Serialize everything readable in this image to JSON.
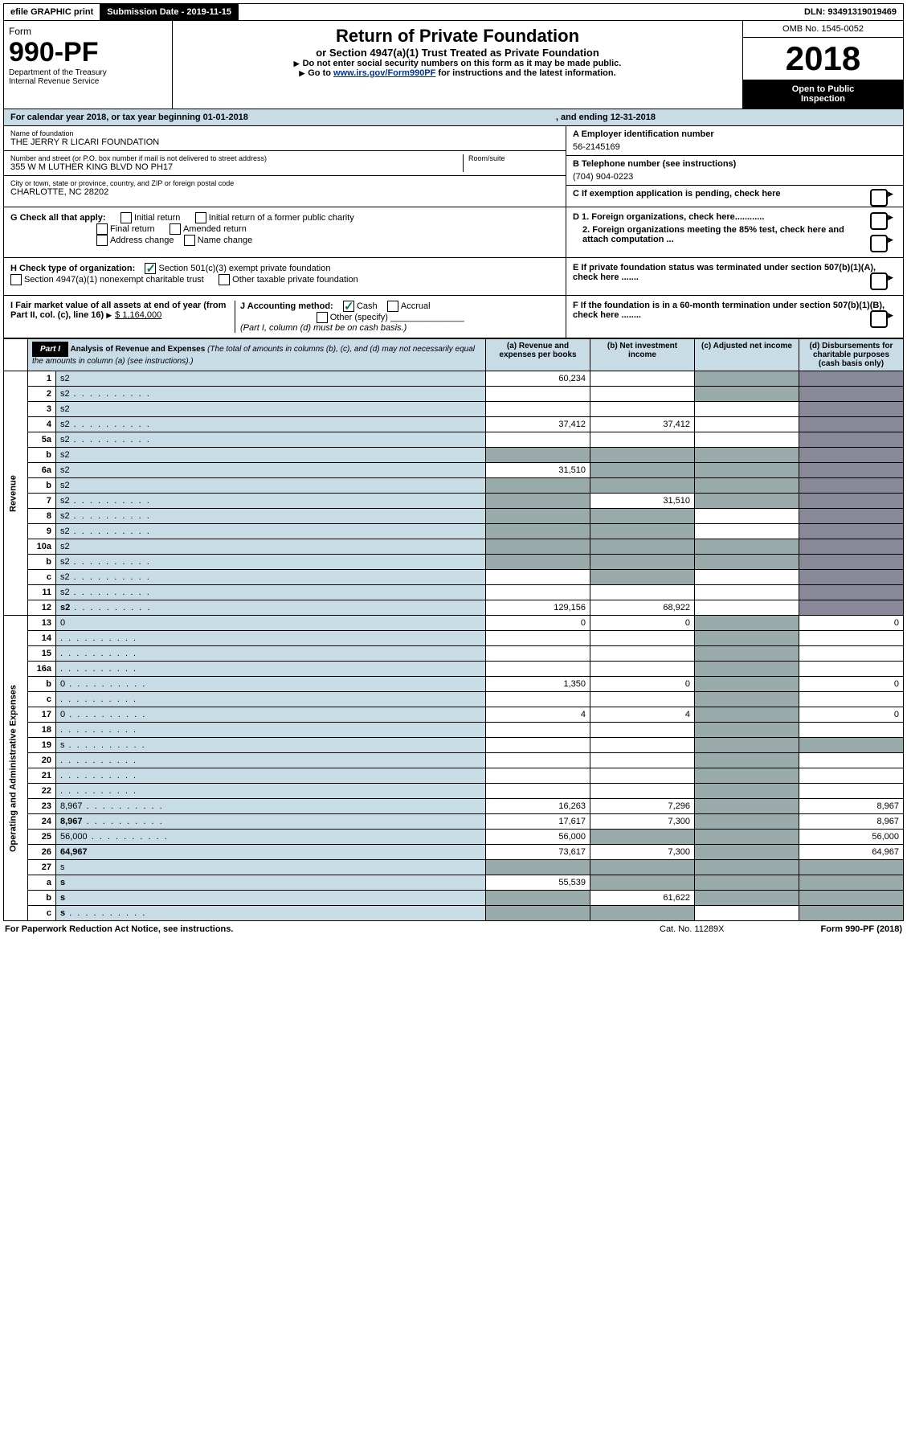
{
  "topbar": {
    "efile": "efile GRAPHIC print",
    "subdate_label": "Submission Date - ",
    "subdate": "2019-11-15",
    "dln_label": "DLN: ",
    "dln": "93491319019469"
  },
  "header": {
    "form_word": "Form",
    "form_no": "990-PF",
    "dept1": "Department of the Treasury",
    "dept2": "Internal Revenue Service",
    "title": "Return of Private Foundation",
    "subtitle": "or Section 4947(a)(1) Trust Treated as Private Foundation",
    "instr1": "Do not enter social security numbers on this form as it may be made public.",
    "instr2_pre": "Go to ",
    "instr2_link": "www.irs.gov/Form990PF",
    "instr2_post": " for instructions and the latest information.",
    "omb": "OMB No. 1545-0052",
    "year": "2018",
    "inspect1": "Open to Public",
    "inspect2": "Inspection"
  },
  "cal": {
    "text": "For calendar year 2018, or tax year beginning 01-01-2018",
    "ending": ", and ending 12-31-2018"
  },
  "info": {
    "name_label": "Name of foundation",
    "name": "THE JERRY R LICARI FOUNDATION",
    "addr_label": "Number and street (or P.O. box number if mail is not delivered to street address)",
    "addr": "355 W M LUTHER KING BLVD NO PH17",
    "room_label": "Room/suite",
    "city_label": "City or town, state or province, country, and ZIP or foreign postal code",
    "city": "CHARLOTTE, NC  28202",
    "a_label": "A Employer identification number",
    "a_val": "56-2145169",
    "b_label": "B Telephone number (see instructions)",
    "b_val": "(704) 904-0223",
    "c_label": "C If exemption application is pending, check here"
  },
  "checks": {
    "g_label": "G Check all that apply:",
    "g_opts": [
      "Initial return",
      "Initial return of a former public charity",
      "Final return",
      "Amended return",
      "Address change",
      "Name change"
    ],
    "h_label": "H Check type of organization:",
    "h_opt1": "Section 501(c)(3) exempt private foundation",
    "h_opt2": "Section 4947(a)(1) nonexempt charitable trust",
    "h_opt3": "Other taxable private foundation",
    "i_label": "I Fair market value of all assets at end of year (from Part II, col. (c), line 16)",
    "i_val": "$  1,164,000",
    "j_label": "J Accounting method:",
    "j_cash": "Cash",
    "j_accrual": "Accrual",
    "j_other": "Other (specify)",
    "j_note": "(Part I, column (d) must be on cash basis.)",
    "d1": "D 1. Foreign organizations, check here............",
    "d2": "2. Foreign organizations meeting the 85% test, check here and attach computation ...",
    "e": "E  If private foundation status was terminated under section 507(b)(1)(A), check here .......",
    "f": "F  If the foundation is in a 60-month termination under section 507(b)(1)(B), check here ........"
  },
  "part1": {
    "label": "Part I",
    "title": "Analysis of Revenue and Expenses",
    "title_note": " (The total of amounts in columns (b), (c), and (d) may not necessarily equal the amounts in column (a) (see instructions).)",
    "cols": {
      "a": "(a)   Revenue and expenses per books",
      "b": "(b)  Net investment income",
      "c": "(c)  Adjusted net income",
      "d": "(d)  Disbursements for charitable purposes (cash basis only)"
    }
  },
  "side_labels": {
    "revenue": "Revenue",
    "expenses": "Operating and Administrative Expenses"
  },
  "rows": [
    {
      "n": "1",
      "d": "s2",
      "a": "60,234",
      "b": "",
      "c": "s"
    },
    {
      "n": "2",
      "d": "s2",
      "dots": true,
      "a": "",
      "b": "",
      "c": "s"
    },
    {
      "n": "3",
      "d": "s2",
      "a": "",
      "b": "",
      "c": ""
    },
    {
      "n": "4",
      "d": "s2",
      "dots": true,
      "a": "37,412",
      "b": "37,412",
      "c": ""
    },
    {
      "n": "5a",
      "d": "s2",
      "dots": true,
      "a": "",
      "b": "",
      "c": ""
    },
    {
      "n": "b",
      "d": "s2",
      "a": "s",
      "b": "s",
      "c": "s"
    },
    {
      "n": "6a",
      "d": "s2",
      "a": "31,510",
      "b": "s",
      "c": "s"
    },
    {
      "n": "b",
      "d": "s2",
      "a": "s",
      "b": "s",
      "c": "s"
    },
    {
      "n": "7",
      "d": "s2",
      "dots": true,
      "a": "s",
      "b": "31,510",
      "c": "s"
    },
    {
      "n": "8",
      "d": "s2",
      "dots": true,
      "a": "s",
      "b": "s",
      "c": ""
    },
    {
      "n": "9",
      "d": "s2",
      "dots": true,
      "a": "s",
      "b": "s",
      "c": ""
    },
    {
      "n": "10a",
      "d": "s2",
      "a": "s",
      "b": "s",
      "c": "s"
    },
    {
      "n": "b",
      "d": "s2",
      "dots": true,
      "a": "s",
      "b": "s",
      "c": "s"
    },
    {
      "n": "c",
      "d": "s2",
      "dots": true,
      "a": "",
      "b": "s",
      "c": ""
    },
    {
      "n": "11",
      "d": "s2",
      "dots": true,
      "a": "",
      "b": "",
      "c": ""
    },
    {
      "n": "12",
      "d": "s2",
      "dots": true,
      "bold": true,
      "a": "129,156",
      "b": "68,922",
      "c": ""
    },
    {
      "n": "13",
      "d": "0",
      "a": "0",
      "b": "0",
      "c": "s"
    },
    {
      "n": "14",
      "d": "",
      "dots": true,
      "a": "",
      "b": "",
      "c": "s"
    },
    {
      "n": "15",
      "d": "",
      "dots": true,
      "a": "",
      "b": "",
      "c": "s"
    },
    {
      "n": "16a",
      "d": "",
      "dots": true,
      "a": "",
      "b": "",
      "c": "s"
    },
    {
      "n": "b",
      "d": "0",
      "dots": true,
      "a": "1,350",
      "b": "0",
      "c": "s"
    },
    {
      "n": "c",
      "d": "",
      "dots": true,
      "a": "",
      "b": "",
      "c": "s"
    },
    {
      "n": "17",
      "d": "0",
      "dots": true,
      "a": "4",
      "b": "4",
      "c": "s"
    },
    {
      "n": "18",
      "d": "",
      "dots": true,
      "a": "",
      "b": "",
      "c": "s"
    },
    {
      "n": "19",
      "d": "s",
      "dots": true,
      "a": "",
      "b": "",
      "c": "s"
    },
    {
      "n": "20",
      "d": "",
      "dots": true,
      "a": "",
      "b": "",
      "c": "s"
    },
    {
      "n": "21",
      "d": "",
      "dots": true,
      "a": "",
      "b": "",
      "c": "s"
    },
    {
      "n": "22",
      "d": "",
      "dots": true,
      "a": "",
      "b": "",
      "c": "s"
    },
    {
      "n": "23",
      "d": "8,967",
      "dots": true,
      "a": "16,263",
      "b": "7,296",
      "c": "s"
    },
    {
      "n": "24",
      "d": "8,967",
      "dots": true,
      "bold": true,
      "a": "17,617",
      "b": "7,300",
      "c": "s"
    },
    {
      "n": "25",
      "d": "56,000",
      "dots": true,
      "a": "56,000",
      "b": "s",
      "c": "s"
    },
    {
      "n": "26",
      "d": "64,967",
      "bold": true,
      "a": "73,617",
      "b": "7,300",
      "c": "s"
    },
    {
      "n": "27",
      "d": "s",
      "a": "s",
      "b": "s",
      "c": "s"
    },
    {
      "n": "a",
      "d": "s",
      "bold": true,
      "a": "55,539",
      "b": "s",
      "c": "s"
    },
    {
      "n": "b",
      "d": "s",
      "bold": true,
      "a": "s",
      "b": "61,622",
      "c": "s"
    },
    {
      "n": "c",
      "d": "s",
      "dots": true,
      "bold": true,
      "a": "s",
      "b": "s",
      "c": ""
    }
  ],
  "footer": {
    "left": "For Paperwork Reduction Act Notice, see instructions.",
    "mid": "Cat. No. 11289X",
    "right": "Form 990-PF (2018)"
  }
}
